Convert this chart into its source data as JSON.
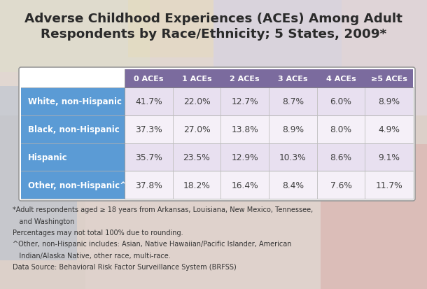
{
  "title": "Adverse Childhood Experiences (ACEs) Among Adult\nRespondents by Race/Ethnicity; 5 States, 2009*",
  "col_headers": [
    "0 ACEs",
    "1 ACEs",
    "2 ACEs",
    "3 ACEs",
    "4 ACEs",
    "≥5 ACEs"
  ],
  "row_labels": [
    "White, non-Hispanic",
    "Black, non-Hispanic",
    "Hispanic",
    "Other, non-Hispanic^"
  ],
  "data": [
    [
      "41.7%",
      "22.0%",
      "12.7%",
      "8.7%",
      "6.0%",
      "8.9%"
    ],
    [
      "37.3%",
      "27.0%",
      "13.8%",
      "8.9%",
      "8.0%",
      "4.9%"
    ],
    [
      "35.7%",
      "23.5%",
      "12.9%",
      "10.3%",
      "8.6%",
      "9.1%"
    ],
    [
      "37.8%",
      "18.2%",
      "16.4%",
      "8.4%",
      "7.6%",
      "11.7%"
    ]
  ],
  "header_bg": "#7b6b9e",
  "row_label_bg": "#5b9bd5",
  "data_bg_light": "#e8e0f0",
  "data_bg_lighter": "#f5f0f8",
  "row_text_color": "#ffffff",
  "header_text_color": "#ffffff",
  "data_text_color": "#404040",
  "title_color": "#2a2a2a",
  "bg_colors": {
    "top_left": "#e8d8c8",
    "top_right": "#d0c8e0",
    "bottom_left": "#e0b0a0",
    "bottom_right": "#d0b8c0",
    "center": "#c8c0d0"
  },
  "footnote_lines": [
    "*Adult respondents aged ≥ 18 years from Arkansas, Louisiana, New Mexico, Tennessee,",
    "   and Washington",
    "Percentages may not total 100% due to rounding.",
    "^Other, non-Hispanic includes: Asian, Native Hawaiian/Pacific Islander, American",
    "   Indian/Alaska Native, other race, multi-race.",
    "Data Source: Behavioral Risk Factor Surveillance System (BRFSS)"
  ]
}
